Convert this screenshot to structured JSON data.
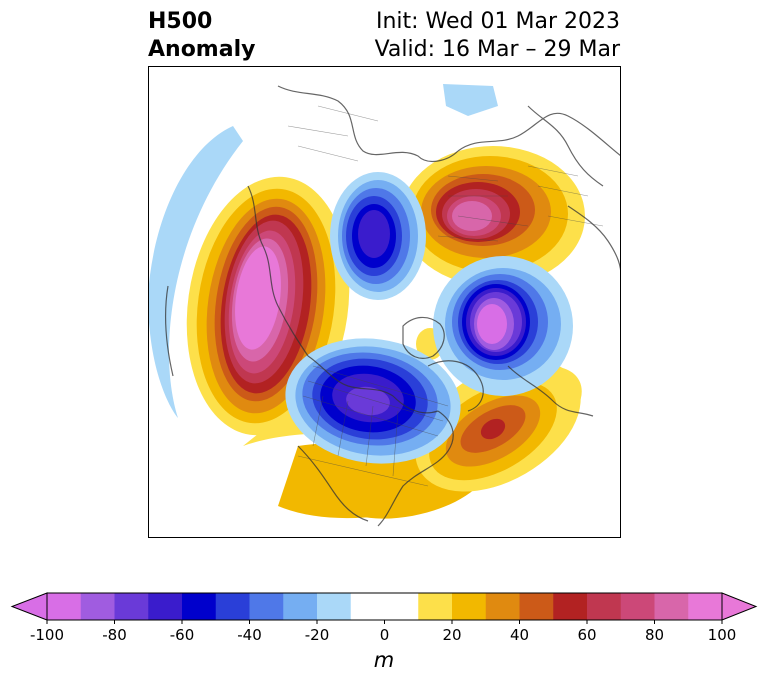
{
  "title": {
    "line1": "H500",
    "line2": "Anomaly"
  },
  "init": "Init: Wed 01 Mar 2023",
  "valid": "Valid: 16 Mar – 29 Mar",
  "colorbar": {
    "unit": "m",
    "ticks": [
      "-100",
      "-80",
      "-60",
      "-40",
      "-20",
      "0",
      "20",
      "40",
      "60",
      "80",
      "100"
    ],
    "colors": [
      "#d86ee6",
      "#a05ce0",
      "#6a3ad8",
      "#3a1ccc",
      "#0000cc",
      "#2a3fd8",
      "#4f78e8",
      "#75aef2",
      "#aad8f8",
      "#ffffff",
      "#ffffff",
      "#fde04a",
      "#f2b800",
      "#e08a10",
      "#cc5a18",
      "#b22222",
      "#c03750",
      "#cc4878",
      "#d866aa",
      "#e878d8"
    ]
  },
  "map_data": {
    "projection": "north-polar-stereographic",
    "centers": [
      {
        "sign": "positive",
        "region": "North Pacific / Gulf of Alaska",
        "peak": 100
      },
      {
        "sign": "negative",
        "region": "Western Canada / Hudson Bay",
        "peak": -80
      },
      {
        "sign": "positive",
        "region": "North Atlantic",
        "peak": 60
      },
      {
        "sign": "negative",
        "region": "Scandinavia / Arctic Europe",
        "peak": -90
      },
      {
        "sign": "positive",
        "region": "Central Asia / Siberia",
        "peak": 100
      },
      {
        "sign": "negative",
        "region": "East Siberia",
        "peak": -70
      }
    ]
  }
}
